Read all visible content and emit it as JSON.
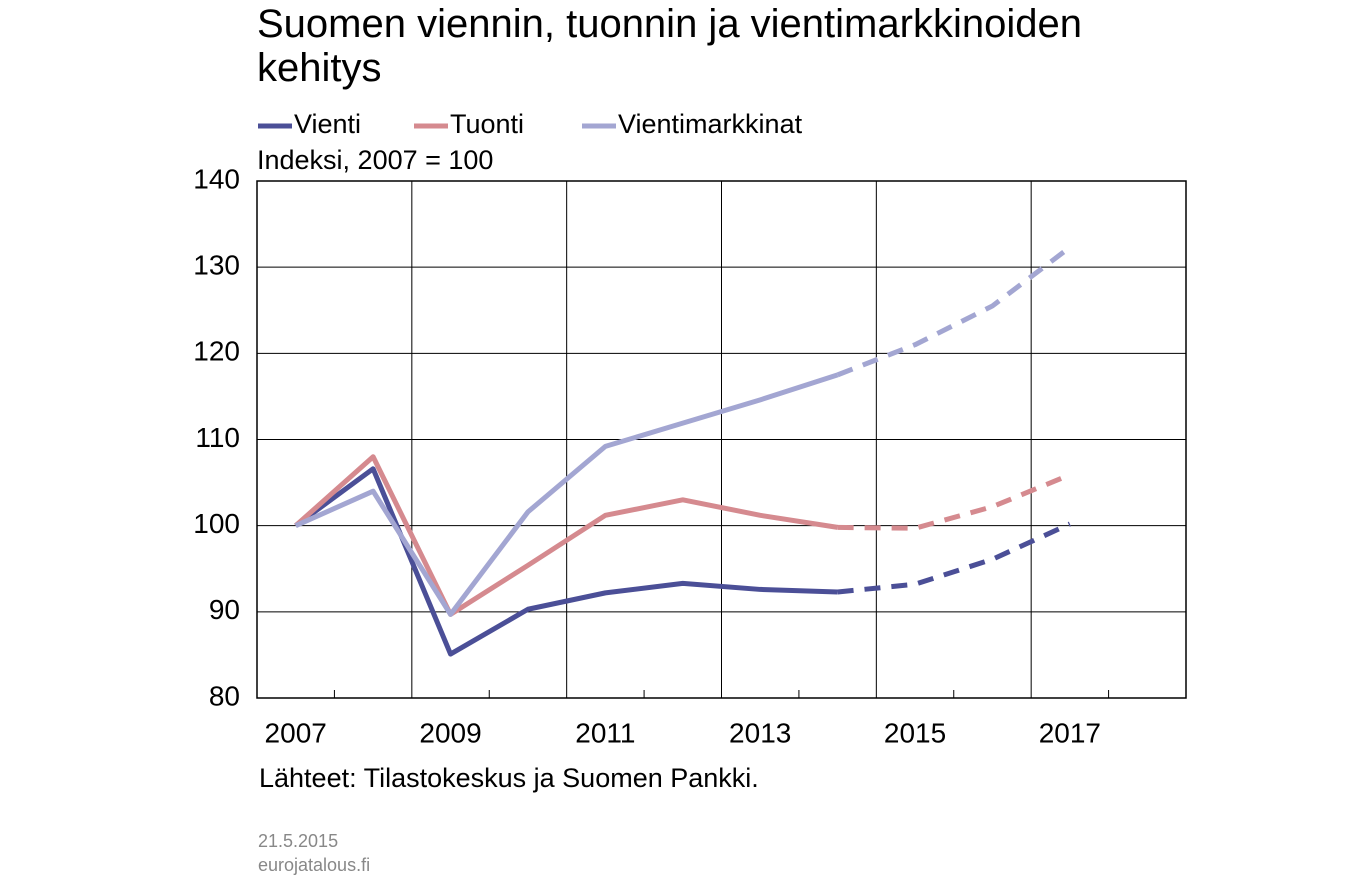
{
  "chart_data": {
    "type": "line",
    "title": "Suomen viennin, tuonnin ja vientimarkkinoiden kehitys",
    "y_label": "Indeksi, 2007 = 100",
    "source": "Lähteet: Tilastokeskus ja Suomen Pankki.",
    "date": "21.5.2015",
    "site": "eurojatalous.fi",
    "categories": [
      "2007",
      null,
      "2009",
      null,
      "2011",
      null,
      "2013",
      null,
      "2015",
      null,
      "2017",
      null
    ],
    "forecast_from": 7,
    "series": [
      {
        "name": "Vienti",
        "color": "#4b4f97",
        "values": [
          100,
          106.6,
          85.1,
          90.3,
          92.2,
          93.3,
          92.6,
          92.3,
          93.2,
          96.1,
          100.2,
          null
        ]
      },
      {
        "name": "Tuonti",
        "color": "#d58a8f",
        "values": [
          100,
          108.0,
          89.7,
          95.4,
          101.2,
          103.0,
          101.2,
          99.8,
          99.7,
          102.2,
          105.9,
          null
        ]
      },
      {
        "name": "Vientimarkkinat",
        "color": "#a3a6d2",
        "values": [
          100,
          104.0,
          89.7,
          101.6,
          109.2,
          111.9,
          114.6,
          117.5,
          121.0,
          125.5,
          132.3,
          null
        ]
      }
    ],
    "ylim": [
      80,
      140
    ],
    "yticks": [
      80,
      90,
      100,
      110,
      120,
      130,
      140
    ],
    "grid": true
  }
}
